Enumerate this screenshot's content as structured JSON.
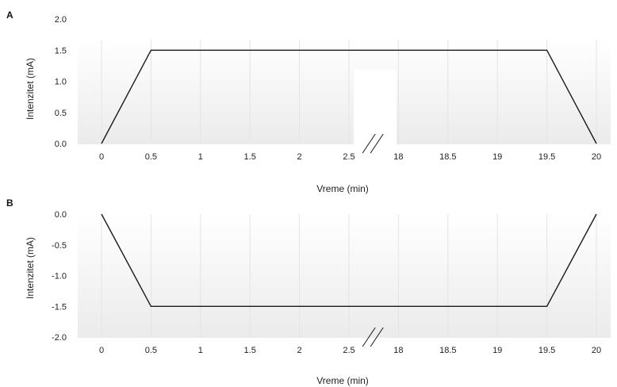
{
  "chart_data": [
    {
      "panel_label": "A",
      "type": "line",
      "xlabel": "Vreme (min)",
      "ylabel": "Intenzitet (mA)",
      "x_ticks": [
        "0",
        "0.5",
        "1",
        "1.5",
        "2",
        "2.5",
        "18",
        "18.5",
        "19",
        "19.5",
        "20"
      ],
      "y_ticks": [
        "2.0",
        "1.5",
        "1.0",
        "0.5",
        "0.0"
      ],
      "ylim": [
        0,
        2
      ],
      "x_axis_break": "between 2.5 and 18",
      "series": [
        {
          "x": [
            0,
            0.5,
            19.5,
            20
          ],
          "y": [
            0,
            1.5,
            1.5,
            0
          ]
        }
      ],
      "line_color": "#1a1a1a"
    },
    {
      "panel_label": "B",
      "type": "line",
      "xlabel": "Vreme (min)",
      "ylabel": "Intenzitet (mA)",
      "x_ticks": [
        "0",
        "0.5",
        "1",
        "1.5",
        "2",
        "2.5",
        "18",
        "18.5",
        "19",
        "19.5",
        "20"
      ],
      "y_ticks": [
        "0.0",
        "-0.5",
        "-1.0",
        "-1.5",
        "-2.0"
      ],
      "ylim": [
        -2,
        0
      ],
      "x_axis_break": "between 2.5 and 18",
      "series": [
        {
          "x": [
            0,
            0.5,
            19.5,
            20
          ],
          "y": [
            0,
            -1.5,
            -1.5,
            0
          ]
        }
      ],
      "line_color": "#1a1a1a"
    }
  ]
}
